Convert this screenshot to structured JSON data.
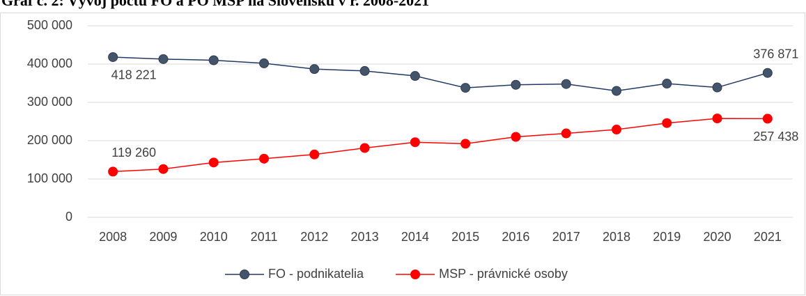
{
  "chart_data": {
    "type": "line",
    "title": "Graf č. 2: Vývoj počtu FO a PO MSP na Slovensku v r. 2008-2021",
    "categories": [
      "2008",
      "2009",
      "2010",
      "2011",
      "2012",
      "2013",
      "2014",
      "2015",
      "2016",
      "2017",
      "2018",
      "2019",
      "2020",
      "2021"
    ],
    "series": [
      {
        "name": "FO - podnikatelia",
        "color": "#44546a",
        "values": [
          418221,
          413000,
          410000,
          402000,
          387000,
          382000,
          369000,
          338000,
          346000,
          348000,
          330000,
          349000,
          339000,
          376871
        ],
        "value_labels": [
          "418 221",
          null,
          null,
          null,
          null,
          null,
          null,
          null,
          null,
          null,
          null,
          null,
          null,
          "376 871"
        ]
      },
      {
        "name": "MSP - právnické osoby",
        "color": "#ff0000",
        "values": [
          119260,
          126000,
          143000,
          153000,
          164000,
          181000,
          196000,
          192000,
          210000,
          219000,
          229000,
          246000,
          258000,
          257438
        ],
        "value_labels": [
          "119 260",
          null,
          null,
          null,
          null,
          null,
          null,
          null,
          null,
          null,
          null,
          null,
          null,
          "257 438"
        ]
      }
    ],
    "ylim": [
      0,
      500000
    ],
    "yticks": [
      {
        "value": 0,
        "label": "0"
      },
      {
        "value": 100000,
        "label": "100 000"
      },
      {
        "value": 200000,
        "label": "200 000"
      },
      {
        "value": 300000,
        "label": "300 000"
      },
      {
        "value": 400000,
        "label": "400 000"
      },
      {
        "value": 500000,
        "label": "500 000"
      }
    ],
    "grid": true,
    "legend": "bottom"
  }
}
